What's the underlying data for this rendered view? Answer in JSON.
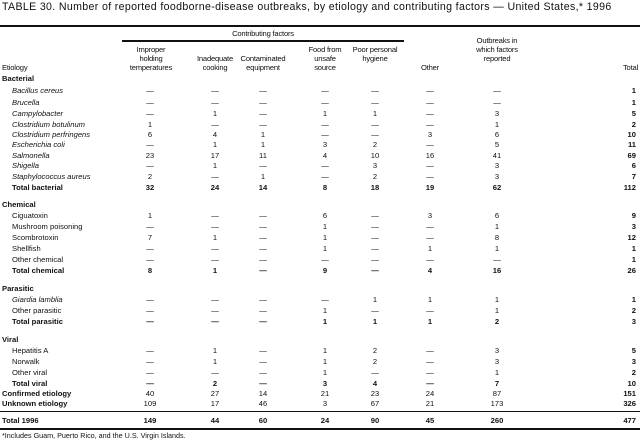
{
  "title": "TABLE 30. Number of reported foodborne-disease outbreaks, by etiology and contributing factors — United States,* 1996",
  "header": {
    "group": "Contributing factors",
    "etiology": "Etiology",
    "columns": [
      "Improper holding temperatures",
      "Inadequate cooking",
      "Contaminated equipment",
      "Food from unsafe source",
      "Poor personal hygiene",
      "Other",
      "Outbreaks in which factors reported",
      "Total"
    ]
  },
  "rows": [
    {
      "label": "Bacterial",
      "type": "section"
    },
    {
      "label": "Bacillus cereus",
      "type": "item",
      "italic": true,
      "values": [
        "—",
        "—",
        "—",
        "—",
        "—",
        "—",
        "—",
        "1"
      ]
    },
    {
      "label": "Brucella",
      "type": "item",
      "italic": true,
      "values": [
        "—",
        "—",
        "—",
        "—",
        "—",
        "—",
        "—",
        "1"
      ]
    },
    {
      "label": "Campylobacter",
      "type": "item",
      "italic": true,
      "values": [
        "—",
        "1",
        "—",
        "1",
        "1",
        "—",
        "3",
        "5"
      ]
    },
    {
      "label": "Clostridium botulinum",
      "type": "item",
      "italic": true,
      "values": [
        "1",
        "—",
        "—",
        "—",
        "—",
        "—",
        "1",
        "2"
      ]
    },
    {
      "label": "Clostridium perfringens",
      "type": "item",
      "italic": true,
      "values": [
        "6",
        "4",
        "1",
        "—",
        "—",
        "3",
        "6",
        "10"
      ]
    },
    {
      "label": "Escherichia coli",
      "type": "item",
      "italic": true,
      "values": [
        "—",
        "1",
        "1",
        "3",
        "2",
        "—",
        "5",
        "11"
      ]
    },
    {
      "label": "Salmonella",
      "type": "item",
      "italic": true,
      "values": [
        "23",
        "17",
        "11",
        "4",
        "10",
        "16",
        "41",
        "69"
      ]
    },
    {
      "label": "Shigella",
      "type": "item",
      "italic": true,
      "values": [
        "—",
        "1",
        "—",
        "—",
        "3",
        "—",
        "3",
        "6"
      ]
    },
    {
      "label": "Staphylococcus aureus",
      "type": "item",
      "italic": true,
      "values": [
        "2",
        "—",
        "1",
        "—",
        "2",
        "—",
        "3",
        "7"
      ]
    },
    {
      "label": "Total bacterial",
      "type": "subtotal",
      "values": [
        "32",
        "24",
        "14",
        "8",
        "18",
        "19",
        "62",
        "112"
      ]
    },
    {
      "label": "Chemical",
      "type": "section"
    },
    {
      "label": "Ciguatoxin",
      "type": "item",
      "values": [
        "1",
        "—",
        "—",
        "6",
        "—",
        "3",
        "6",
        "9"
      ]
    },
    {
      "label": "Mushroom poisoning",
      "type": "item",
      "values": [
        "—",
        "—",
        "—",
        "1",
        "—",
        "—",
        "1",
        "3"
      ]
    },
    {
      "label": "Scombrotoxin",
      "type": "item",
      "values": [
        "7",
        "1",
        "—",
        "1",
        "—",
        "—",
        "8",
        "12"
      ]
    },
    {
      "label": "Shellfish",
      "type": "item",
      "values": [
        "—",
        "—",
        "—",
        "1",
        "—",
        "1",
        "1",
        "1"
      ]
    },
    {
      "label": "Other chemical",
      "type": "item",
      "values": [
        "—",
        "—",
        "—",
        "—",
        "—",
        "—",
        "—",
        "1"
      ]
    },
    {
      "label": "Total chemical",
      "type": "subtotal",
      "values": [
        "8",
        "1",
        "—",
        "9",
        "—",
        "4",
        "16",
        "26"
      ]
    },
    {
      "label": "Parasitic",
      "type": "section"
    },
    {
      "label": "Giardia lamblia",
      "type": "item",
      "italic": true,
      "values": [
        "—",
        "—",
        "—",
        "—",
        "1",
        "1",
        "1",
        "1"
      ]
    },
    {
      "label": "Other parasitic",
      "type": "item",
      "values": [
        "—",
        "—",
        "—",
        "1",
        "—",
        "—",
        "1",
        "2"
      ]
    },
    {
      "label": "Total parasitic",
      "type": "subtotal",
      "values": [
        "—",
        "—",
        "—",
        "1",
        "1",
        "1",
        "2",
        "3"
      ]
    },
    {
      "label": "Viral",
      "type": "section"
    },
    {
      "label": "Hepatitis A",
      "type": "item",
      "values": [
        "—",
        "1",
        "—",
        "1",
        "2",
        "—",
        "3",
        "5"
      ]
    },
    {
      "label": "Norwalk",
      "type": "item",
      "values": [
        "—",
        "1",
        "—",
        "1",
        "2",
        "—",
        "3",
        "3"
      ]
    },
    {
      "label": "Other viral",
      "type": "item",
      "values": [
        "—",
        "—",
        "—",
        "1",
        "—",
        "—",
        "1",
        "2"
      ]
    },
    {
      "label": "Total viral",
      "type": "subtotal",
      "values": [
        "—",
        "2",
        "—",
        "3",
        "4",
        "—",
        "7",
        "10"
      ]
    },
    {
      "label": "Confirmed etiology",
      "type": "summary",
      "values": [
        "40",
        "27",
        "14",
        "21",
        "23",
        "24",
        "87",
        "151"
      ]
    },
    {
      "label": "Unknown etiology",
      "type": "summary",
      "values": [
        "109",
        "17",
        "46",
        "3",
        "67",
        "21",
        "173",
        "326"
      ]
    },
    {
      "label": "Total 1996",
      "type": "grand",
      "values": [
        "149",
        "44",
        "60",
        "24",
        "90",
        "45",
        "260",
        "477"
      ]
    }
  ],
  "footnote": "*Includes Guam, Puerto Rico, and the U.S. Virgin Islands."
}
